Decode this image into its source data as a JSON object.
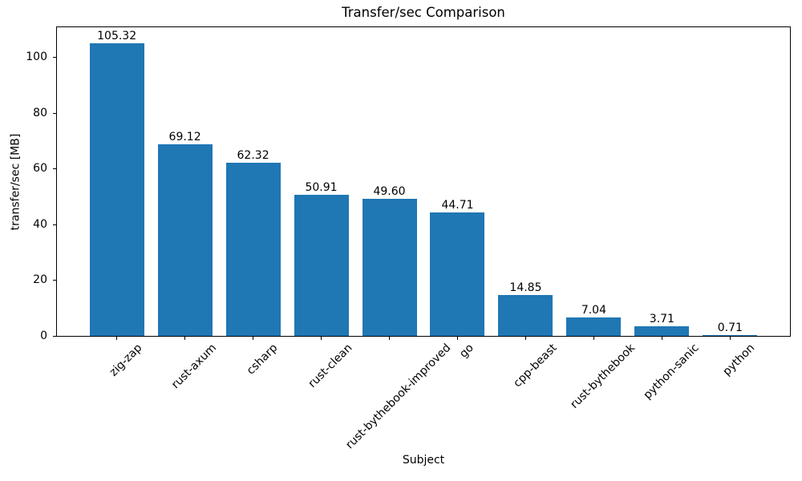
{
  "chart_data": {
    "type": "bar",
    "title": "Transfer/sec Comparison",
    "xlabel": "Subject",
    "ylabel": "transfer/sec [MB]",
    "categories": [
      "zig-zap",
      "rust-axum",
      "csharp",
      "rust-clean",
      "rust-bythebook-improved",
      "go",
      "cpp-beast",
      "rust-bythebook",
      "python-sanic",
      "python"
    ],
    "values": [
      105.32,
      69.12,
      62.32,
      50.91,
      49.6,
      44.71,
      14.85,
      7.04,
      3.71,
      0.71
    ],
    "value_labels": [
      "105.32",
      "69.12",
      "62.32",
      "50.91",
      "49.60",
      "44.71",
      "14.85",
      "7.04",
      "3.71",
      "0.71"
    ],
    "y_ticks": [
      0,
      20,
      40,
      60,
      80,
      100
    ],
    "ylim": [
      0,
      111.3
    ],
    "bar_color": "#1f77b4",
    "text_color": "#000000",
    "grid": false,
    "legend_position": "none",
    "x_tick_rotation_deg": 45
  }
}
